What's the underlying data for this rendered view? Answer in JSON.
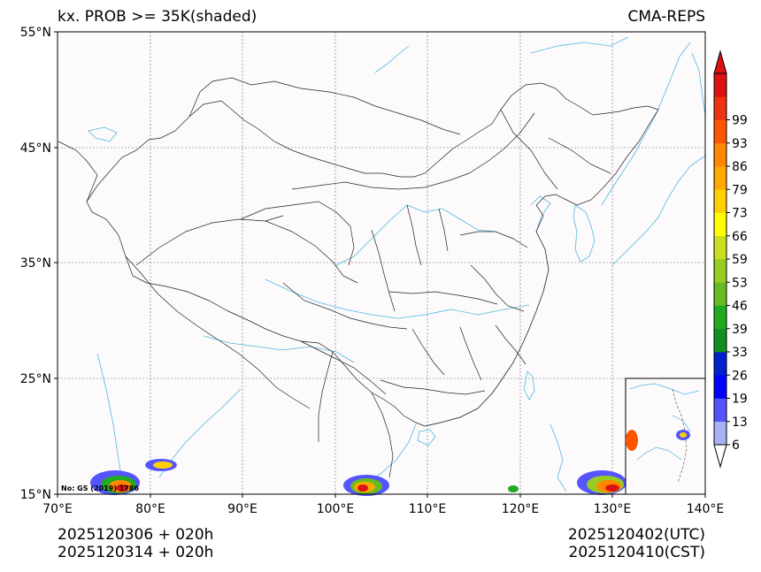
{
  "title": {
    "left": "kx. PROB >= 35K(shaded)",
    "right": "CMA-REPS"
  },
  "footer": {
    "init_utc": "2025120306  +  020h",
    "init_cst": "2025120314  +  020h",
    "valid_utc": "2025120402(UTC)",
    "valid_cst": "2025120410(CST)"
  },
  "axes": {
    "lat_labels": [
      "55°N",
      "45°N",
      "35°N",
      "25°N",
      "15°N"
    ],
    "lon_labels": [
      "70°E",
      "80°E",
      "90°E",
      "100°E",
      "110°E",
      "120°E",
      "130°E",
      "140°E"
    ],
    "lat_range": [
      15,
      55
    ],
    "lon_range": [
      70,
      140
    ]
  },
  "map_note": "No: GS (2019) 1786",
  "colorbar": {
    "labels": [
      "6",
      "13",
      "19",
      "26",
      "33",
      "39",
      "46",
      "53",
      "59",
      "66",
      "73",
      "79",
      "86",
      "93",
      "99"
    ],
    "colors": [
      "#aab0f5",
      "#5555ff",
      "#0000ff",
      "#0022cc",
      "#109020",
      "#22aa22",
      "#66bb22",
      "#99cc22",
      "#ccdd22",
      "#ffff00",
      "#ffd000",
      "#ffaa00",
      "#ff8800",
      "#ff5500",
      "#ee3311",
      "#dd1111"
    ],
    "under_color": "#ffffff",
    "over_color": "#dd1111"
  },
  "colors": {
    "map_background": "#fdfafc",
    "coast": "#4fb8e0",
    "border": "#222222",
    "grid": "#666677"
  }
}
